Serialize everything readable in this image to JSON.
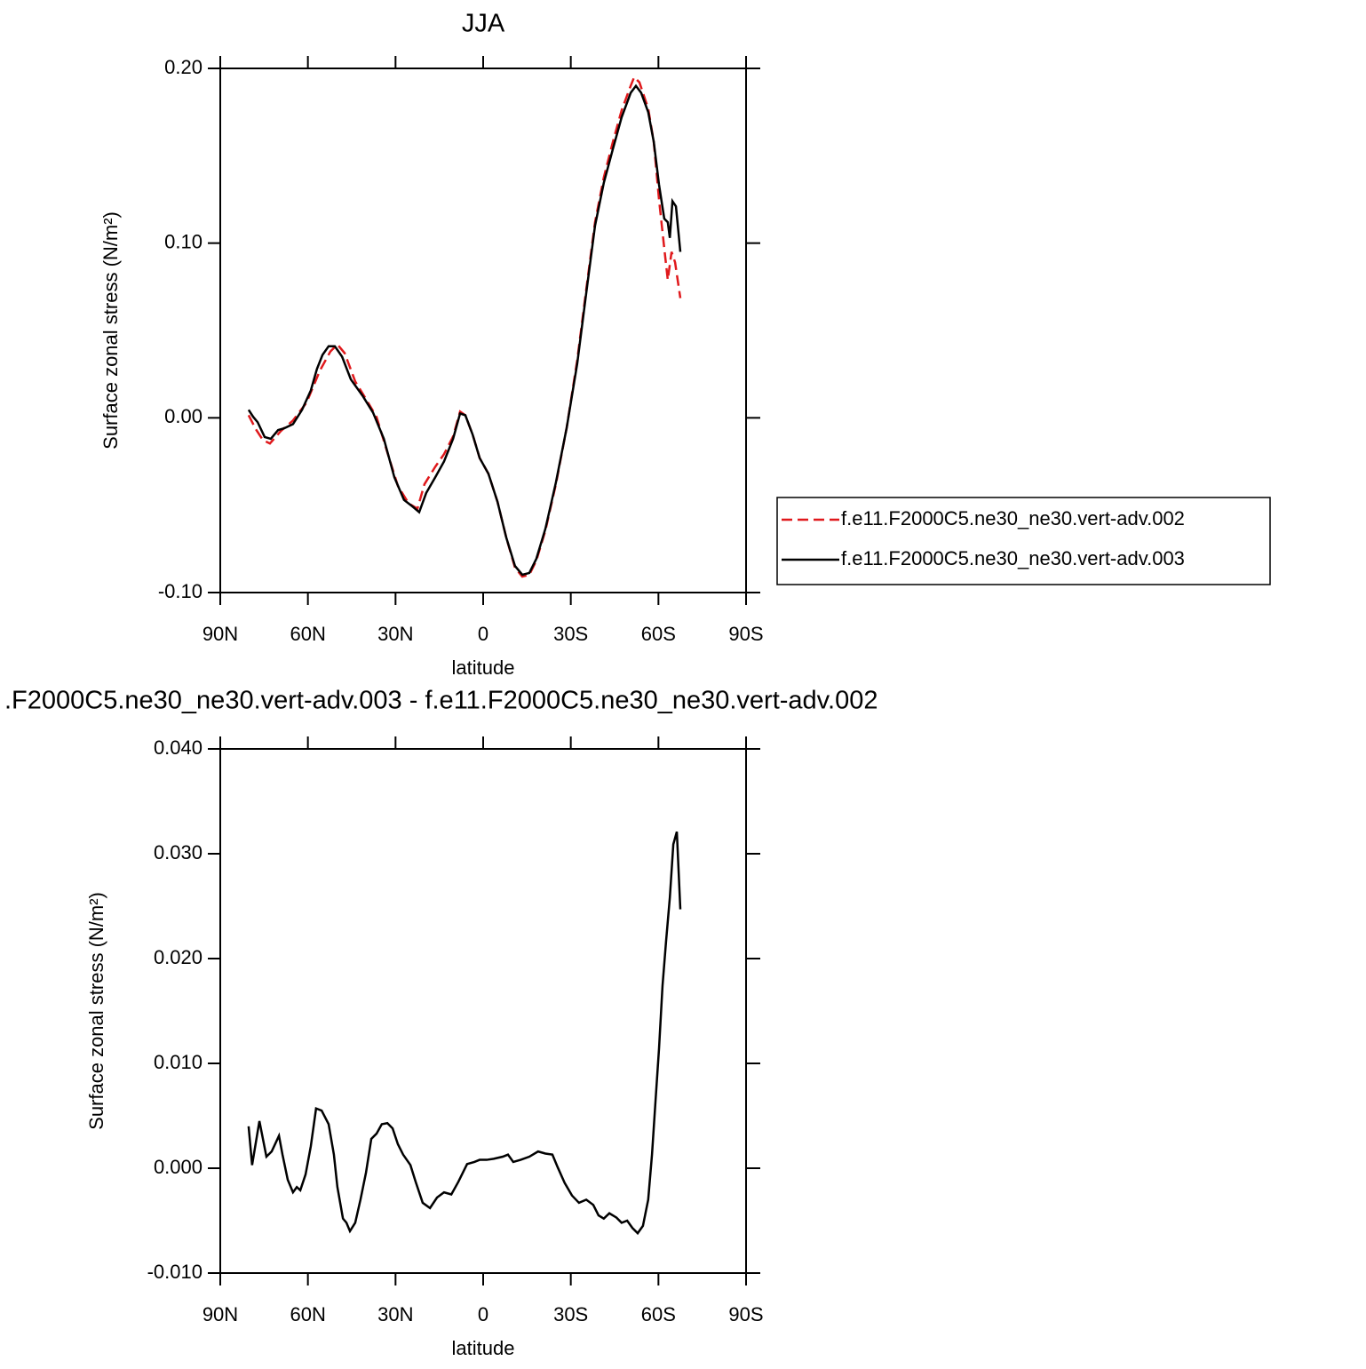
{
  "chart_data": [
    {
      "type": "line",
      "title": "JJA",
      "xlabel": "latitude",
      "ylabel": "Surface zonal stress (N/m²)",
      "xlim": [
        90,
        -90
      ],
      "ylim": [
        -0.1,
        0.2
      ],
      "xticks": [
        {
          "value": 90,
          "label": "90N"
        },
        {
          "value": 60,
          "label": "60N"
        },
        {
          "value": 30,
          "label": "30N"
        },
        0,
        {
          "value": -30,
          "label": "30S"
        },
        {
          "value": -60,
          "label": "60S"
        },
        {
          "value": -90,
          "label": "90S"
        }
      ],
      "yticks": [
        {
          "value": 0.2,
          "label": "0.20"
        },
        {
          "value": 0.1,
          "label": "0.10"
        },
        {
          "value": 0,
          "label": "0.00"
        },
        {
          "value": -0.1,
          "label": "-0.10"
        }
      ],
      "legend": "right",
      "series": [
        {
          "name": "f.e11.F2000C5.ne30_ne30.vert-adv.002",
          "color": "#e0191c",
          "line_style": "dashed",
          "x": [
            80.3,
            77.8,
            75.4,
            73,
            69.3,
            65.1,
            60.5,
            55.9,
            52.3,
            49.9,
            47.4,
            43.8,
            40.1,
            36.5,
            32.8,
            29.2,
            25.5,
            22.5,
            20.1,
            16.4,
            13.4,
            10.3,
            7.9,
            6.1,
            3.6,
            1.2,
            -1.8,
            -4.9,
            -7.9,
            -10.9,
            -13.4,
            -15.8,
            -18.2,
            -21.3,
            -24.9,
            -28.6,
            -32.2,
            -35.3,
            -38.3,
            -41.3,
            -44.4,
            -47.4,
            -50.5,
            -51.7,
            -53.5,
            -56.5,
            -58.4,
            -60.2,
            -62,
            -63.2,
            -64.5,
            -65.7,
            -67.5
          ],
          "values": [
            0.0015,
            -0.0066,
            -0.0127,
            -0.0147,
            -0.0076,
            -0.0015,
            0.0086,
            0.027,
            0.038,
            0.042,
            0.037,
            0.0208,
            0.0107,
            0.0005,
            -0.0198,
            -0.039,
            -0.049,
            -0.052,
            -0.038,
            -0.028,
            -0.0208,
            -0.0107,
            0.0036,
            0.0015,
            -0.0096,
            -0.023,
            -0.032,
            -0.048,
            -0.0685,
            -0.0858,
            -0.0909,
            -0.0898,
            -0.0817,
            -0.0645,
            -0.038,
            -0.0056,
            0.033,
            0.0736,
            0.112,
            0.1376,
            0.1579,
            0.176,
            0.19,
            0.195,
            0.192,
            0.177,
            0.158,
            0.125,
            0.097,
            0.079,
            0.095,
            0.089,
            0.0685
          ]
        },
        {
          "name": "f.e11.F2000C5.ne30_ne30.vert-adv.003",
          "color": "#000000",
          "line_style": "solid",
          "x": [
            80.3,
            78.7,
            77.2,
            74.8,
            72.7,
            70.2,
            68.1,
            65.1,
            62,
            59,
            56.9,
            55,
            52.9,
            50.8,
            48.3,
            45.3,
            41.3,
            37.7,
            34,
            30.4,
            27.1,
            24,
            21.9,
            19.5,
            16.4,
            13.4,
            10.3,
            7.9,
            6.1,
            3.6,
            1.2,
            -1.8,
            -4.9,
            -7.9,
            -10.9,
            -13.4,
            -15.8,
            -18.2,
            -21.3,
            -24.9,
            -28.6,
            -32.2,
            -35.3,
            -38.3,
            -41.3,
            -44.4,
            -47.4,
            -50.5,
            -52.3,
            -54.1,
            -56.5,
            -58.4,
            -60.2,
            -62,
            -63.2,
            -63.9,
            -64.8,
            -66,
            -67.5
          ],
          "values": [
            0.0046,
            0.0005,
            -0.0025,
            -0.011,
            -0.012,
            -0.007,
            -0.006,
            -0.0036,
            0.0046,
            0.0157,
            0.028,
            0.036,
            0.041,
            0.041,
            0.035,
            0.022,
            0.0127,
            0.003,
            -0.012,
            -0.034,
            -0.047,
            -0.051,
            -0.054,
            -0.043,
            -0.034,
            -0.025,
            -0.012,
            0.0025,
            0.0015,
            -0.0096,
            -0.023,
            -0.032,
            -0.048,
            -0.0685,
            -0.0848,
            -0.0898,
            -0.0888,
            -0.0807,
            -0.0635,
            -0.037,
            -0.0056,
            0.031,
            0.0716,
            0.11,
            0.1345,
            0.1538,
            0.172,
            0.186,
            0.19,
            0.186,
            0.175,
            0.158,
            0.1335,
            0.114,
            0.112,
            0.103,
            0.124,
            0.121,
            0.095
          ]
        }
      ]
    },
    {
      "type": "line",
      "title": ".F2000C5.ne30_ne30.vert-adv.003 - f.e11.F2000C5.ne30_ne30.vert-adv.002",
      "xlabel": "latitude",
      "ylabel": "Surface zonal stress (N/m²)",
      "xlim": [
        90,
        -90
      ],
      "ylim": [
        -0.01,
        0.04
      ],
      "xticks": [
        {
          "value": 90,
          "label": "90N"
        },
        {
          "value": 60,
          "label": "60N"
        },
        {
          "value": 30,
          "label": "30N"
        },
        0,
        {
          "value": -30,
          "label": "30S"
        },
        {
          "value": -60,
          "label": "60S"
        },
        {
          "value": -90,
          "label": "90S"
        }
      ],
      "yticks": [
        {
          "value": 0.04,
          "label": "0.040"
        },
        {
          "value": 0.03,
          "label": "0.030"
        },
        {
          "value": 0.02,
          "label": "0.020"
        },
        {
          "value": 0.01,
          "label": "0.010"
        },
        {
          "value": 0,
          "label": "0.000"
        },
        {
          "value": -0.01,
          "label": "-0.010"
        }
      ],
      "series": [
        {
          "color": "#000000",
          "line_style": "solid",
          "x": [
            80.3,
            79.1,
            76.6,
            74.2,
            72.4,
            69.9,
            68.7,
            66.9,
            65.1,
            63.8,
            62.6,
            60.8,
            59,
            57.2,
            55.3,
            52.9,
            51.1,
            49.9,
            48,
            46.8,
            45.6,
            43.8,
            42,
            40.1,
            38.3,
            36.5,
            34.7,
            32.8,
            31,
            29.2,
            27.4,
            24.9,
            23.1,
            20.7,
            18.2,
            15.8,
            13.4,
            10.9,
            8.5,
            5.5,
            3,
            1.2,
            -1.2,
            -3.6,
            -6.7,
            -8.5,
            -10.3,
            -12.8,
            -15.8,
            -18.8,
            -21.3,
            -23.7,
            -25.5,
            -27.9,
            -30.4,
            -32.8,
            -35.3,
            -37.7,
            -39.5,
            -41.3,
            -43.2,
            -45.6,
            -47.4,
            -49.3,
            -51.1,
            -52.9,
            -54.7,
            -56.5,
            -57.8,
            -59,
            -60.2,
            -61.4,
            -62.6,
            -63.9,
            -65.1,
            -66.3,
            -67.5
          ],
          "values": [
            0.004,
            0.0003,
            0.0045,
            0.0011,
            0.0016,
            0.0031,
            0.0013,
            -0.0011,
            -0.0023,
            -0.0018,
            -0.0021,
            -0.0006,
            0.0021,
            0.0057,
            0.0055,
            0.0042,
            0.0013,
            -0.0018,
            -0.0048,
            -0.0052,
            -0.006,
            -0.0052,
            -0.003,
            -0.0004,
            0.0028,
            0.0033,
            0.0042,
            0.0043,
            0.0038,
            0.0023,
            0.0013,
            0.0003,
            -0.0013,
            -0.0033,
            -0.0038,
            -0.0028,
            -0.0023,
            -0.0025,
            -0.0013,
            0.0004,
            0.0006,
            0.0008,
            0.0008,
            0.0009,
            0.0011,
            0.0013,
            0.0006,
            0.0008,
            0.0011,
            0.0016,
            0.0014,
            0.0013,
            0.0001,
            -0.0014,
            -0.0026,
            -0.0033,
            -0.003,
            -0.0035,
            -0.0045,
            -0.0048,
            -0.0043,
            -0.0047,
            -0.0052,
            -0.005,
            -0.0057,
            -0.0062,
            -0.0055,
            -0.003,
            0.0013,
            0.0064,
            0.0114,
            0.0174,
            0.0216,
            0.0258,
            0.0309,
            0.0321,
            0.0247
          ]
        }
      ]
    }
  ]
}
